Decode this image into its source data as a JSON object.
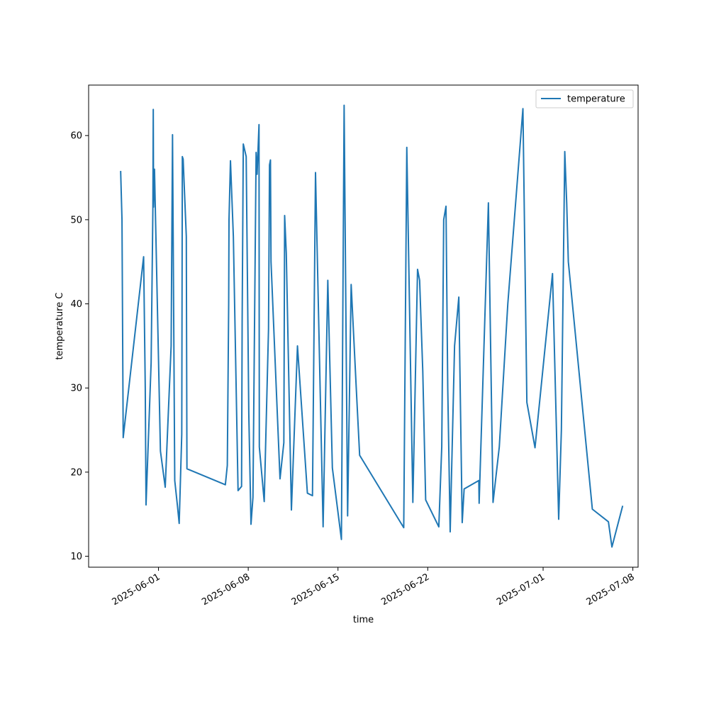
{
  "chart_data": {
    "type": "line",
    "title": "",
    "xlabel": "time",
    "ylabel": "temperature C",
    "x_is_date": true,
    "xlim": [
      "2025-05-26T13:12",
      "2025-07-08T09:49"
    ],
    "ylim": [
      8.7,
      66.0
    ],
    "x_ticks": [
      "2025-06-01",
      "2025-06-08",
      "2025-06-15",
      "2025-06-22",
      "2025-07-01",
      "2025-07-08"
    ],
    "y_ticks": [
      10,
      20,
      30,
      40,
      50,
      60
    ],
    "grid": false,
    "legend": {
      "placement": "top-right",
      "entries": [
        "temperature"
      ]
    },
    "series": [
      {
        "name": "temperature",
        "color": "#1f77b4",
        "x": [
          "2025-05-29T01:09",
          "2025-05-29T03:40",
          "2025-05-29T05:55",
          "2025-05-30T20:09",
          "2025-05-30T23:13",
          "2025-05-31T00:39",
          "2025-05-31T10:12",
          "2025-05-31T13:29",
          "2025-05-31T14:12",
          "2025-05-31T14:44",
          "2025-05-31T16:30",
          "2025-06-01T03:38",
          "2025-06-01T12:36",
          "2025-06-01T23:39",
          "2025-06-02T02:15",
          "2025-06-02T06:25",
          "2025-06-02T11:29",
          "2025-06-02T14:44",
          "2025-06-02T19:33",
          "2025-06-02T20:37",
          "2025-06-02T22:08",
          "2025-06-03T04:04",
          "2025-06-03T05:15",
          "2025-06-06T05:09",
          "2025-06-06T08:49",
          "2025-06-06T11:24",
          "2025-06-06T12:00",
          "2025-06-06T14:44",
          "2025-06-06T20:09",
          "2025-06-07T04:57",
          "2025-06-07T11:29",
          "2025-06-07T12:36",
          "2025-06-07T14:44",
          "2025-06-07T20:09",
          "2025-06-08T01:02",
          "2025-06-08T05:09",
          "2025-06-08T08:49",
          "2025-06-08T14:44",
          "2025-06-08T16:33",
          "2025-06-08T20:09",
          "2025-06-08T20:45",
          "2025-06-09T05:55",
          "2025-06-09T13:58",
          "2025-06-09T15:49",
          "2025-06-09T17:35",
          "2025-06-09T18:39",
          "2025-06-10T11:29",
          "2025-06-10T18:39",
          "2025-06-10T20:09",
          "2025-06-10T23:13",
          "2025-06-11T08:49",
          "2025-06-11T20:09",
          "2025-06-12T14:44",
          "2025-06-13T00:14",
          "2025-06-13T05:55",
          "2025-06-13T20:09",
          "2025-06-14T04:57",
          "2025-06-14T13:29",
          "2025-06-15T06:25",
          "2025-06-15T11:29",
          "2025-06-15T18:02",
          "2025-06-16T00:39",
          "2025-06-16T10:12",
          "2025-06-16T16:33",
          "2025-06-20T03:05",
          "2025-06-20T08:49",
          "2025-06-20T20:09",
          "2025-06-21T04:57",
          "2025-06-21T08:49",
          "2025-06-21T14:44",
          "2025-06-21T20:09",
          "2025-06-22T20:45",
          "2025-06-23T02:15",
          "2025-06-23T05:55",
          "2025-06-23T10:12",
          "2025-06-23T13:29",
          "2025-06-23T18:02",
          "2025-06-24T02:15",
          "2025-06-24T10:12",
          "2025-06-24T16:33",
          "2025-06-24T20:09",
          "2025-06-25T23:39",
          "2025-06-26T00:14",
          "2025-06-26T17:35",
          "2025-06-27T02:15",
          "2025-06-27T13:58",
          "2025-06-28T05:55",
          "2025-06-29T10:12",
          "2025-06-29T17:35",
          "2025-06-30T08:49",
          "2025-07-01T17:35",
          "2025-07-02T05:09",
          "2025-07-02T10:12",
          "2025-07-02T16:33",
          "2025-07-02T20:09",
          "2025-07-02T23:13",
          "2025-07-04T20:09",
          "2025-07-06T02:15",
          "2025-07-06T08:49",
          "2025-07-07T04:57"
        ],
        "values": [
          55.8,
          50.0,
          24.1,
          45.6,
          30.0,
          16.1,
          33.0,
          51.3,
          63.1,
          51.5,
          56.0,
          22.5,
          18.2,
          35.0,
          60.1,
          19.0,
          16.0,
          13.9,
          24.5,
          57.5,
          57.2,
          48.0,
          20.4,
          18.5,
          20.8,
          40.0,
          50.0,
          57.0,
          48.0,
          17.8,
          18.3,
          38.0,
          59.0,
          57.5,
          27.0,
          13.8,
          17.0,
          58.0,
          55.4,
          61.3,
          23.0,
          16.5,
          37.0,
          56.5,
          57.1,
          45.0,
          19.2,
          23.5,
          50.5,
          46.0,
          15.5,
          35.0,
          17.5,
          17.2,
          55.6,
          13.5,
          42.8,
          20.5,
          12.0,
          63.6,
          14.8,
          42.3,
          30.0,
          22.0,
          13.4,
          58.6,
          16.4,
          44.1,
          42.8,
          32.0,
          16.7,
          13.5,
          23.0,
          50.0,
          51.6,
          30.0,
          12.9,
          35.0,
          40.8,
          14.0,
          18.0,
          19.0,
          16.3,
          52.0,
          16.4,
          23.0,
          40.0,
          63.2,
          28.3,
          22.9,
          43.6,
          14.4,
          25.0,
          58.1,
          52.0,
          45.0,
          15.6,
          14.1,
          11.1,
          16.0
        ]
      }
    ]
  }
}
